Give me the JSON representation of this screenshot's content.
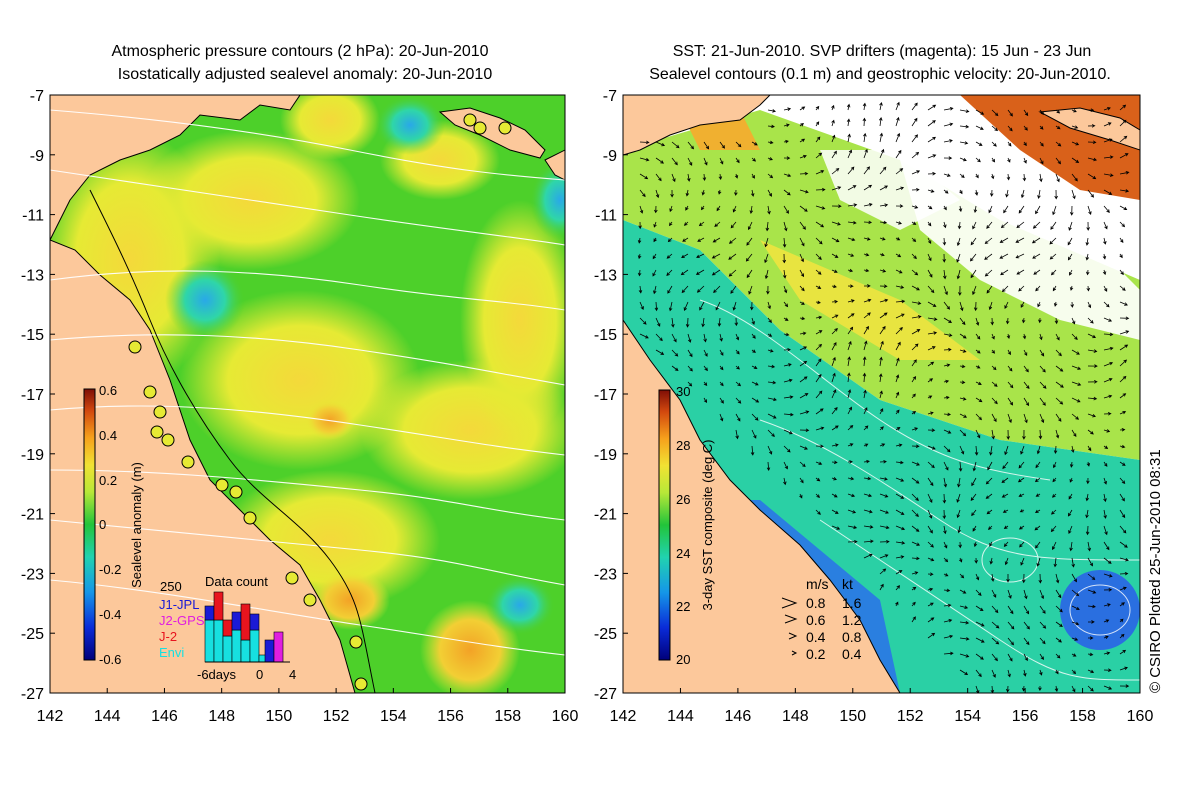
{
  "left_panel": {
    "title_line1": "Atmospheric pressure contours (2 hPa): 20-Jun-2010",
    "title_line2": "Isostatically adjusted sealevel anomaly: 20-Jun-2010",
    "colorbar": {
      "label": "Sealevel anomaly (m)",
      "ticks": [
        "0.6",
        "0.4",
        "0.2",
        "0",
        "-0.2",
        "-0.4",
        "-0.6"
      ],
      "range": [
        -0.6,
        0.6
      ]
    },
    "inset": {
      "title": "Data count",
      "max_label": "250",
      "legend": [
        {
          "label": "J1-JPL",
          "color": "#1a1ad6"
        },
        {
          "label": "J2-GPS",
          "color": "#e01ee0"
        },
        {
          "label": "J-2",
          "color": "#e8141e"
        },
        {
          "label": "Envi",
          "color": "#17e0e0"
        }
      ],
      "x_labels": [
        "-6days",
        "0",
        "4"
      ]
    }
  },
  "right_panel": {
    "title_line1": "SST: 21-Jun-2010. SVP drifters (magenta): 15 Jun - 23 Jun",
    "title_line2": "Sealevel contours (0.1 m) and geostrophic velocity: 20-Jun-2010.",
    "colorbar": {
      "label": "3-day SST composite (deg C)",
      "ticks": [
        "30",
        "28",
        "26",
        "24",
        "22",
        "20"
      ],
      "range": [
        20,
        30
      ]
    },
    "velocity_key": {
      "header_ms": "m/s",
      "header_kt": "kt",
      "rows": [
        {
          "ms": "0.8",
          "kt": "1.6"
        },
        {
          "ms": "0.6",
          "kt": "1.2"
        },
        {
          "ms": "0.4",
          "kt": "0.8"
        },
        {
          "ms": "0.2",
          "kt": "0.4"
        }
      ]
    }
  },
  "axes": {
    "lat_ticks": [
      "-7",
      "-9",
      "-11",
      "-13",
      "-15",
      "-17",
      "-19",
      "-21",
      "-23",
      "-25",
      "-27"
    ],
    "lon_ticks": [
      "142",
      "144",
      "146",
      "148",
      "150",
      "152",
      "154",
      "156",
      "158",
      "160"
    ]
  },
  "credit": "© CSIRO Plotted 25-Jun-2010 08:31",
  "colors": {
    "land": "#fcc89b",
    "sea_green": "#4dd02a",
    "sea_yellow": "#e6ea34",
    "sst_white": "#ffffff"
  }
}
